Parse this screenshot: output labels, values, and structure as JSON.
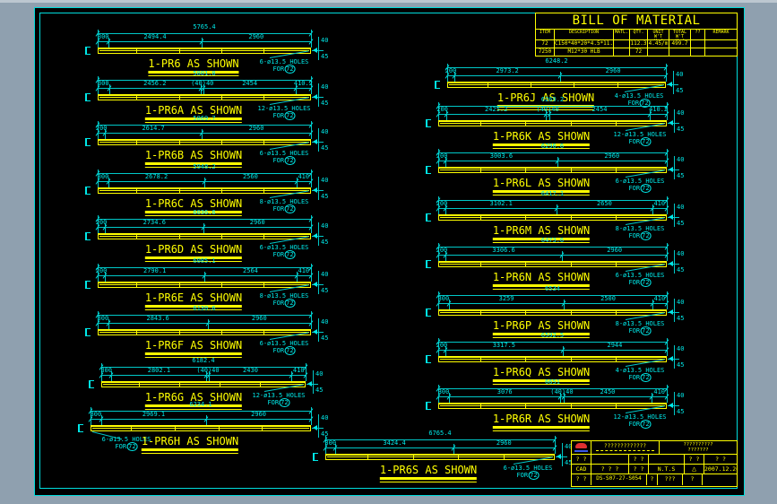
{
  "colors": {
    "background": "#8fa0af",
    "sheet": "#000000",
    "line_cyan": "#00e8e8",
    "line_yellow": "#ffff00",
    "logo_red": "#e03030",
    "logo_blue": "#3858e8"
  },
  "bom": {
    "title": "BILL OF MATERIAL",
    "headers": [
      "ITEM",
      "DESCRIPTION",
      "MATL.",
      "QTY.",
      "UNIT W'T (kg)",
      "TOTAL W'T (kg)",
      "??",
      "REMARK"
    ],
    "rows": [
      [
        "72",
        "C150*40*20*4.5*11.8",
        "",
        "112.3",
        "4.45/m",
        "499.7",
        "",
        ""
      ],
      [
        "7250",
        "M12*30 HLB",
        "",
        "72",
        "",
        "",
        "",
        ""
      ]
    ]
  },
  "diagrams": [
    {
      "label": "1-PR6 AS SHOWN",
      "total": "5765.4",
      "segs": [
        "300",
        "2494.4",
        "2960"
      ],
      "holes": "6-ø13.5 HOLES",
      "for": "72",
      "end_dims": [
        "40",
        "45"
      ]
    },
    {
      "label": "1-PR6A AS SHOWN",
      "total": "5801.8",
      "segs": [
        "300",
        "2456.2",
        "(40)40",
        "2454",
        "410.2"
      ],
      "holes": "12-ø13.5 HOLES",
      "for": "72",
      "end_dims": [
        "40",
        "45"
      ]
    },
    {
      "label": "1-PR6B AS SHOWN",
      "total": "5869.7",
      "segs": [
        "200",
        "2614.7",
        "2960"
      ],
      "holes": "6-ø13.5 HOLES",
      "for": "72",
      "end_dims": [
        "40",
        "45"
      ]
    },
    {
      "label": "1-PR6C AS SHOWN",
      "total": "5948.2",
      "segs": [
        "300",
        "2678.2",
        "2560",
        "410"
      ],
      "holes": "8-ø13.5 HOLES",
      "for": "72",
      "end_dims": [
        "40",
        "45"
      ]
    },
    {
      "label": "1-PR6D AS SHOWN",
      "total": "6036.6",
      "segs": [
        "200",
        "2734.6",
        "2960"
      ],
      "holes": "6-ø13.5 HOLES",
      "for": "72",
      "end_dims": [
        "40",
        "45"
      ]
    },
    {
      "label": "1-PR6E AS SHOWN",
      "total": "6085.1",
      "segs": [
        "200",
        "2790.1",
        "2564",
        "410"
      ],
      "holes": "8-ø13.5 HOLES",
      "for": "72",
      "end_dims": [
        "40",
        "45"
      ]
    },
    {
      "label": "1-PR6F AS SHOWN",
      "total": "6130.6",
      "segs": [
        "300",
        "2843.6",
        "2960"
      ],
      "holes": "6-ø13.5 HOLES",
      "for": "72",
      "end_dims": [
        "40",
        "45"
      ]
    },
    {
      "label": "1-PR6G AS SHOWN",
      "total": "6182.4",
      "segs": [
        "300",
        "2802.1",
        "(40)40",
        "2430",
        "410"
      ],
      "holes": "12-ø13.5 HOLES",
      "for": "72",
      "end_dims": [
        "40",
        "45"
      ]
    },
    {
      "label": "1-PR6H AS SHOWN",
      "total": "6234.1",
      "segs": [
        "300",
        "2969.1",
        "2960"
      ],
      "holes": "6-ø13.5 HOLES",
      "for": "72",
      "end_dims": [
        "40",
        "45"
      ]
    },
    {
      "label": "1-PR6J AS SHOWN",
      "total": "6248.2",
      "segs": [
        "200",
        "2973.2",
        "2960"
      ],
      "holes": "4-ø13.5 HOLES",
      "for": "72",
      "end_dims": [
        "40",
        "45"
      ]
    },
    {
      "label": "1-PR6K AS SHOWN",
      "total": "6269.2",
      "segs": [
        "200",
        "2425.2",
        "(40)40",
        "2454",
        "410.2"
      ],
      "holes": "12-ø13.5 HOLES",
      "for": "72",
      "end_dims": [
        "40",
        "45"
      ]
    },
    {
      "label": "1-PR6L AS SHOWN",
      "total": "6296.6",
      "segs": [
        "200",
        "3003.6",
        "2960"
      ],
      "holes": "6-ø13.5 HOLES",
      "for": "72",
      "end_dims": [
        "40",
        "45"
      ]
    },
    {
      "label": "1-PR6M AS SHOWN",
      "total": "6417.1",
      "segs": [
        "200",
        "3102.1",
        "2650",
        "410"
      ],
      "holes": "8-ø13.5 HOLES",
      "for": "72",
      "end_dims": [
        "40",
        "45"
      ]
    },
    {
      "label": "1-PR6N AS SHOWN",
      "total": "6473.6",
      "segs": [
        "200",
        "3306.6",
        "2960"
      ],
      "holes": "6-ø13.5 HOLES",
      "for": "72",
      "end_dims": [
        "40",
        "45"
      ]
    },
    {
      "label": "1-PR6P AS SHOWN",
      "total": "6534",
      "segs": [
        "300",
        "3259",
        "2500",
        "410"
      ],
      "holes": "8-ø13.5 HOLES",
      "for": "72",
      "end_dims": [
        "40",
        "45"
      ]
    },
    {
      "label": "1-PR6Q AS SHOWN",
      "total": "6592.5",
      "segs": [
        "200",
        "3317.5",
        "2944"
      ],
      "holes": "4-ø13.5 HOLES",
      "for": "72",
      "end_dims": [
        "40",
        "45"
      ]
    },
    {
      "label": "1-PR6R AS SHOWN",
      "total": "6651",
      "segs": [
        "300",
        "3076",
        "(40)40",
        "2450",
        "410"
      ],
      "holes": "12-ø13.5 HOLES",
      "for": "72",
      "end_dims": [
        "40",
        "45"
      ]
    },
    {
      "label": "1-PR6S AS SHOWN",
      "total": "6765.4",
      "segs": [
        "300",
        "3424.4",
        "2960"
      ],
      "holes": "6-ø13.5 HOLES",
      "for": "72",
      "end_dims": [
        "40",
        "45"
      ]
    }
  ],
  "titleblock": {
    "company": "?????????????",
    "project_line1": "??????????",
    "project_line2": "???????",
    "r1": [
      "? ?",
      "",
      "? ?",
      "",
      "? ?",
      "?  ?"
    ],
    "r2": [
      "CAD",
      "? ? ?",
      "? ?",
      "N.T.S",
      "△",
      "2007.12.26"
    ],
    "r3": [
      "? ?",
      "DS-S07-27-S054",
      "?",
      "???",
      "?",
      ""
    ]
  }
}
